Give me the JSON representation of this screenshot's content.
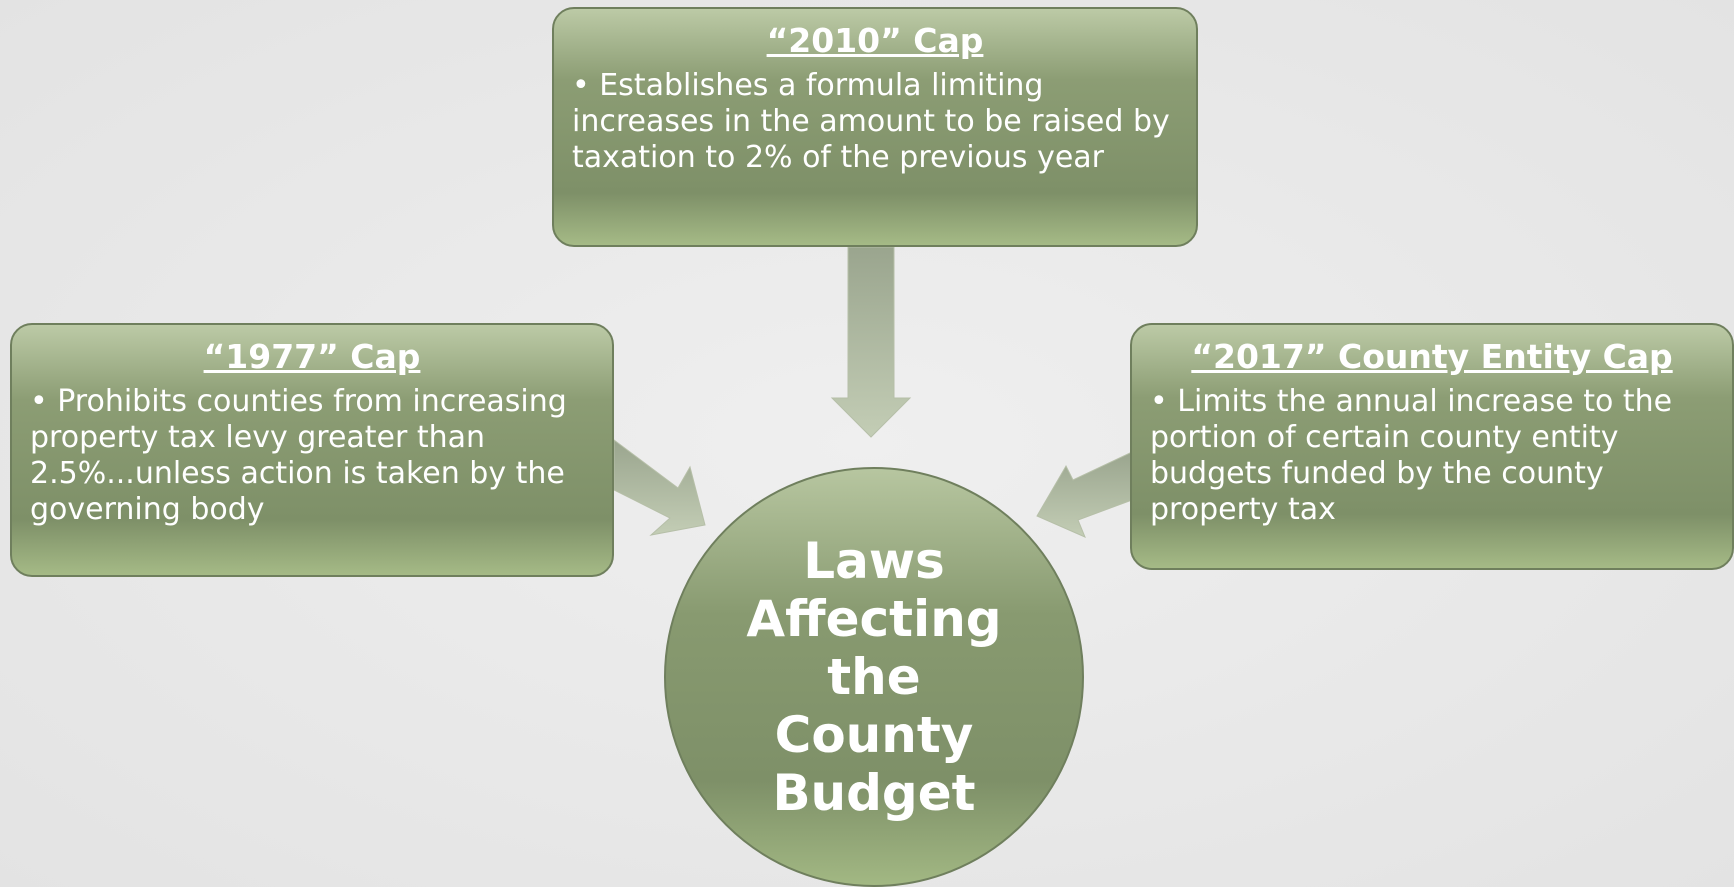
{
  "nodes": [
    {
      "title": "“2010” Cap",
      "text": "• Establishes a formula limiting increases in the amount to be raised by taxation to 2% of the previous year"
    },
    {
      "title": "“1977” Cap",
      "text": "• Prohibits counties from increasing property tax levy greater than 2.5%...unless action is taken by the governing body"
    },
    {
      "title": "“2017” County Entity Cap",
      "text": "• Limits the annual increase to the portion of certain county entity budgets funded by the county property tax"
    }
  ],
  "center": {
    "label": "Laws Affecting the County Budget"
  }
}
